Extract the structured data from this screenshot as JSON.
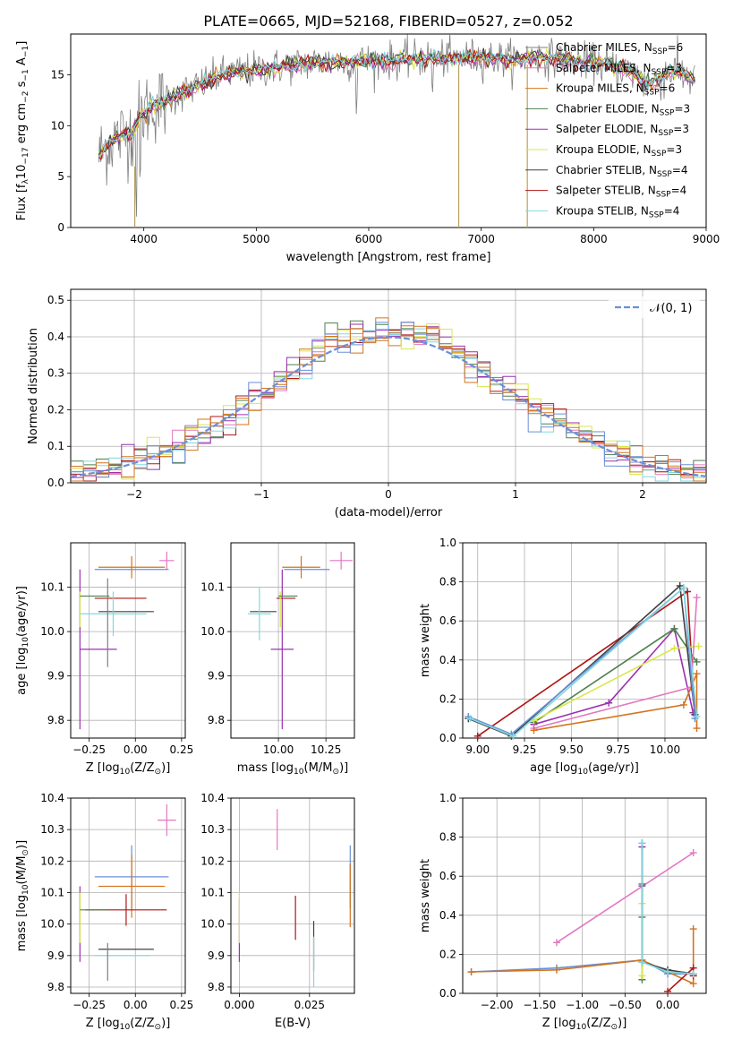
{
  "figure": {
    "title": "PLATE=0665, MJD=52168, FIBERID=0527, z=0.052"
  },
  "legend_colors": [
    "#7f7f7f",
    "#e377c2",
    "#d2741e",
    "#4f7f4f",
    "#9b30b0",
    "#d9e84a",
    "#404040",
    "#b01515",
    "#80d8e0"
  ],
  "chart_data": [
    {
      "id": "spectrum",
      "type": "line",
      "xlabel": "wavelength [Angstrom, rest frame]",
      "ylabel": "Flux [f_λ 10^-17 erg cm^-2 s^-1 A^-1]",
      "ylabel_parts": [
        "Flux [f",
        "λ",
        "10",
        "−17",
        " erg cm",
        "−2",
        " s",
        "−1",
        " A",
        "−1",
        "]"
      ],
      "xlim": [
        3350,
        9000
      ],
      "ylim": [
        0,
        19
      ],
      "xticks": [
        4000,
        5000,
        6000,
        7000,
        8000,
        9000
      ],
      "yticks": [
        0,
        5,
        10,
        15
      ],
      "grid": false,
      "legend": "upper right",
      "series": [
        {
          "name": "Chabrier MILES, N",
          "sub": "SSP",
          "suffix": "=6"
        },
        {
          "name": "Salpeter MILES, N",
          "sub": "SSP",
          "suffix": "=3"
        },
        {
          "name": "Kroupa MILES, N",
          "sub": "SSP",
          "suffix": "=6"
        },
        {
          "name": "Chabrier ELODIE, N",
          "sub": "SSP",
          "suffix": "=3"
        },
        {
          "name": "Salpeter ELODIE, N",
          "sub": "SSP",
          "suffix": "=3"
        },
        {
          "name": "Kroupa ELODIE, N",
          "sub": "SSP",
          "suffix": "=3"
        },
        {
          "name": "Chabrier STELIB, N",
          "sub": "SSP",
          "suffix": "=4"
        },
        {
          "name": "Salpeter STELIB, N",
          "sub": "SSP",
          "suffix": "=4"
        },
        {
          "name": "Kroupa STELIB, N",
          "sub": "SSP",
          "suffix": "=4"
        }
      ],
      "shape": [
        [
          3600,
          7
        ],
        [
          3700,
          8.5
        ],
        [
          3900,
          9.5
        ],
        [
          4000,
          11.5
        ],
        [
          4200,
          12.5
        ],
        [
          4400,
          13.5
        ],
        [
          4700,
          15
        ],
        [
          5000,
          15.5
        ],
        [
          5500,
          16.2
        ],
        [
          6000,
          16.3
        ],
        [
          6500,
          16.6
        ],
        [
          7000,
          16.7
        ],
        [
          7300,
          16.5
        ],
        [
          7500,
          16.8
        ],
        [
          8000,
          16.2
        ],
        [
          8300,
          15.5
        ],
        [
          8500,
          14
        ],
        [
          8700,
          15.5
        ],
        [
          8900,
          14.5
        ]
      ]
    },
    {
      "id": "residuals",
      "type": "histogram",
      "xlabel": "(data-model)/error",
      "ylabel": "Normed distribution",
      "xlim": [
        -2.5,
        2.5
      ],
      "ylim": [
        0,
        0.53
      ],
      "xticks": [
        -2,
        -1,
        0,
        1,
        2
      ],
      "yticks": [
        0.0,
        0.1,
        0.2,
        0.3,
        0.4,
        0.5
      ],
      "grid": true,
      "legend_label": "𝒩(0, 1)",
      "legend_color": "#6b8fd6",
      "legend": "upper right"
    },
    {
      "id": "age-vs-Z",
      "type": "scatter",
      "xlabel_parts": [
        "Z [log",
        "10",
        "(Z/Z",
        "⊙",
        ")]"
      ],
      "ylabel_parts": [
        "age  [log",
        "10",
        "(age/yr)]"
      ],
      "xlim": [
        -0.35,
        0.27
      ],
      "ylim": [
        9.76,
        10.2
      ],
      "xticks": [
        -0.25,
        0.0,
        0.25
      ],
      "yticks": [
        9.8,
        9.9,
        10.0,
        10.1
      ],
      "grid": true,
      "points": [
        {
          "c": "#e377c2",
          "x": 0.17,
          "y": 10.16,
          "xe": 0.04,
          "ye": 0.02
        },
        {
          "c": "#6b8fd6",
          "x": -0.02,
          "y": 10.14,
          "xe": 0.2,
          "ye": 0.0
        },
        {
          "c": "#d2741e",
          "x": -0.02,
          "y": 10.145,
          "xe": 0.18,
          "ye": 0.025
        },
        {
          "c": "#b01515",
          "x": -0.08,
          "y": 10.075,
          "xe": 0.14,
          "ye": 0.0
        },
        {
          "c": "#9b30b0",
          "x": -0.3,
          "y": 9.96,
          "xe": 0.0,
          "ye": 0.18
        },
        {
          "c": "#d9e84a",
          "x": -0.3,
          "y": 10.05,
          "xe": 0.0,
          "ye": 0.04
        },
        {
          "c": "#9b30b0",
          "x": -0.2,
          "y": 9.96,
          "xe": 0.1,
          "ye": 0.0
        },
        {
          "c": "#404040",
          "x": -0.05,
          "y": 10.045,
          "xe": 0.15,
          "ye": 0.0
        },
        {
          "c": "#80d8e0",
          "x": -0.12,
          "y": 10.04,
          "xe": 0.18,
          "ye": 0.05
        },
        {
          "c": "#4f7f4f",
          "x": -0.22,
          "y": 10.08,
          "xe": 0.08,
          "ye": 0.0
        },
        {
          "c": "#7f7f7f",
          "x": -0.15,
          "y": 10.02,
          "xe": 0.0,
          "ye": 0.1
        }
      ]
    },
    {
      "id": "age-vs-mass",
      "type": "scatter",
      "xlabel_parts": [
        "mass [log",
        "10",
        "(M/M",
        "⊙",
        ")]"
      ],
      "xlim": [
        9.75,
        10.4
      ],
      "ylim": [
        9.76,
        10.2
      ],
      "xticks": [
        10.0,
        10.25
      ],
      "yticks": [
        9.8,
        9.9,
        10.0,
        10.1
      ],
      "grid": true,
      "points": [
        {
          "c": "#e377c2",
          "x": 10.33,
          "y": 10.16,
          "xe": 0.06,
          "ye": 0.02
        },
        {
          "c": "#6b8fd6",
          "x": 10.15,
          "y": 10.14,
          "xe": 0.12,
          "ye": 0.0
        },
        {
          "c": "#d2741e",
          "x": 10.12,
          "y": 10.145,
          "xe": 0.1,
          "ye": 0.025
        },
        {
          "c": "#b01515",
          "x": 10.04,
          "y": 10.075,
          "xe": 0.05,
          "ye": 0.0
        },
        {
          "c": "#9b30b0",
          "x": 10.02,
          "y": 9.96,
          "xe": 0.06,
          "ye": 0.18
        },
        {
          "c": "#d9e84a",
          "x": 10.01,
          "y": 10.05,
          "xe": 0.0,
          "ye": 0.04
        },
        {
          "c": "#404040",
          "x": 9.92,
          "y": 10.045,
          "xe": 0.07,
          "ye": 0.0
        },
        {
          "c": "#80d8e0",
          "x": 9.9,
          "y": 10.04,
          "xe": 0.06,
          "ye": 0.06
        },
        {
          "c": "#4f7f4f",
          "x": 10.05,
          "y": 10.08,
          "xe": 0.05,
          "ye": 0.0
        }
      ]
    },
    {
      "id": "weight-vs-age",
      "type": "line",
      "xlabel_parts": [
        "age  [log",
        "10",
        "(age/yr)]"
      ],
      "ylabel": "mass weight",
      "xlim": [
        8.92,
        10.22
      ],
      "ylim": [
        0,
        1.0
      ],
      "xticks": [
        9.0,
        9.25,
        9.5,
        9.75,
        10.0
      ],
      "yticks": [
        0.0,
        0.2,
        0.4,
        0.6,
        0.8,
        1.0
      ],
      "grid": true,
      "series": [
        {
          "c": "#b01515",
          "x": [
            9.0,
            10.12,
            10.16
          ],
          "y": [
            0.01,
            0.75,
            0.12
          ]
        },
        {
          "c": "#9b30b0",
          "x": [
            9.3,
            9.7,
            10.05,
            10.15
          ],
          "y": [
            0.07,
            0.18,
            0.56,
            0.13
          ]
        },
        {
          "c": "#4f7f4f",
          "x": [
            9.3,
            10.05,
            10.17
          ],
          "y": [
            0.08,
            0.56,
            0.39
          ]
        },
        {
          "c": "#d9e84a",
          "x": [
            9.3,
            10.05,
            10.18
          ],
          "y": [
            0.09,
            0.46,
            0.47
          ]
        },
        {
          "c": "#e377c2",
          "x": [
            9.3,
            10.14,
            10.17
          ],
          "y": [
            0.05,
            0.26,
            0.72
          ]
        },
        {
          "c": "#d2741e",
          "x": [
            9.3,
            10.1,
            10.17,
            10.17
          ],
          "y": [
            0.04,
            0.17,
            0.33,
            0.05
          ]
        },
        {
          "c": "#404040",
          "x": [
            8.95,
            9.18,
            10.08,
            10.16
          ],
          "y": [
            0.1,
            0.01,
            0.78,
            0.12
          ]
        },
        {
          "c": "#6b8fd6",
          "x": [
            8.95,
            9.18,
            10.1,
            10.16
          ],
          "y": [
            0.11,
            0.02,
            0.77,
            0.1
          ]
        },
        {
          "c": "#80d8e0",
          "x": [
            8.96,
            9.19,
            10.1,
            10.17
          ],
          "y": [
            0.1,
            0.01,
            0.77,
            0.11
          ]
        }
      ]
    },
    {
      "id": "mass-vs-Z",
      "type": "scatter",
      "xlabel_parts": [
        "Z [log",
        "10",
        "(Z/Z",
        "⊙",
        ")]"
      ],
      "ylabel_parts": [
        "mass [log",
        "10",
        "(M/M",
        "⊙",
        ")]"
      ],
      "xlim": [
        -0.35,
        0.27
      ],
      "ylim": [
        9.78,
        10.4
      ],
      "xticks": [
        -0.25,
        0.0,
        0.25
      ],
      "yticks": [
        9.8,
        9.9,
        10.0,
        10.1,
        10.2,
        10.3,
        10.4
      ],
      "grid": true,
      "points": [
        {
          "c": "#e377c2",
          "x": 0.17,
          "y": 10.33,
          "xe": 0.05,
          "ye": 0.05
        },
        {
          "c": "#6b8fd6",
          "x": -0.02,
          "y": 10.15,
          "xe": 0.2,
          "ye": 0.1
        },
        {
          "c": "#d2741e",
          "x": -0.02,
          "y": 10.12,
          "xe": 0.18,
          "ye": 0.1
        },
        {
          "c": "#b01515",
          "x": -0.05,
          "y": 10.045,
          "xe": 0.22,
          "ye": 0.05
        },
        {
          "c": "#9b30b0",
          "x": -0.3,
          "y": 10.0,
          "xe": 0.0,
          "ye": 0.12
        },
        {
          "c": "#d9e84a",
          "x": -0.3,
          "y": 10.02,
          "xe": 0.0,
          "ye": 0.08
        },
        {
          "c": "#404040",
          "x": -0.05,
          "y": 9.92,
          "xe": 0.15,
          "ye": 0.0
        },
        {
          "c": "#80d8e0",
          "x": -0.07,
          "y": 9.9,
          "xe": 0.15,
          "ye": 0.0
        },
        {
          "c": "#4f7f4f",
          "x": -0.22,
          "y": 10.045,
          "xe": 0.08,
          "ye": 0.0
        },
        {
          "c": "#7f7f7f",
          "x": -0.15,
          "y": 9.88,
          "xe": 0.0,
          "ye": 0.06
        }
      ]
    },
    {
      "id": "mass-vs-ebv",
      "type": "scatter",
      "xlabel": "E(B-V)",
      "xlim": [
        -0.003,
        0.041
      ],
      "ylim": [
        9.78,
        10.4
      ],
      "xticks": [
        0.0,
        0.025
      ],
      "yticks": [
        9.8,
        9.9,
        10.0,
        10.1,
        10.2,
        10.3,
        10.4
      ],
      "grid": true,
      "points": [
        {
          "c": "#e377c2",
          "x": 0.0135,
          "y": 10.3,
          "xe": 0.0,
          "ye": 0.065
        },
        {
          "c": "#6b8fd6",
          "x": 0.0395,
          "y": 10.15,
          "xe": 0.0,
          "ye": 0.1
        },
        {
          "c": "#d2741e",
          "x": 0.0395,
          "y": 10.09,
          "xe": 0.0,
          "ye": 0.1
        },
        {
          "c": "#b01515",
          "x": 0.02,
          "y": 10.02,
          "xe": 0.0,
          "ye": 0.07
        },
        {
          "c": "#9b30b0",
          "x": 0.0,
          "y": 9.98,
          "xe": 0.0,
          "ye": 0.1
        },
        {
          "c": "#d9e84a",
          "x": 0.0,
          "y": 10.02,
          "xe": 0.0,
          "ye": 0.08
        },
        {
          "c": "#404040",
          "x": 0.0265,
          "y": 9.93,
          "xe": 0.0,
          "ye": 0.08
        },
        {
          "c": "#80d8e0",
          "x": 0.0265,
          "y": 9.88,
          "xe": 0.0,
          "ye": 0.08
        }
      ]
    },
    {
      "id": "weight-vs-Z",
      "type": "line",
      "xlabel_parts": [
        "Z [log",
        "10",
        "(Z/Z",
        "⊙",
        ")]"
      ],
      "ylabel": "mass weight",
      "xlim": [
        -2.4,
        0.45
      ],
      "ylim": [
        0,
        1.0
      ],
      "xticks": [
        -2.0,
        -1.5,
        -1.0,
        -0.5,
        0.0
      ],
      "yticks": [
        0.0,
        0.2,
        0.4,
        0.6,
        0.8,
        1.0
      ],
      "grid": true,
      "series": [
        {
          "c": "#6b8fd6",
          "x": [
            -2.3,
            -1.3,
            -0.3,
            0.0,
            0.3
          ],
          "y": [
            0.11,
            0.13,
            0.17,
            0.1,
            0.1
          ]
        },
        {
          "c": "#d2741e",
          "x": [
            -2.3,
            -1.3,
            -0.3,
            0.0,
            0.3,
            0.3
          ],
          "y": [
            0.11,
            0.12,
            0.17,
            0.11,
            0.05,
            0.33
          ]
        },
        {
          "c": "#e377c2",
          "x": [
            -1.3,
            0.3
          ],
          "y": [
            0.26,
            0.72
          ]
        },
        {
          "c": "#9b30b0",
          "x": [
            -0.3,
            -0.3
          ],
          "y": [
            0.75,
            0.55
          ]
        },
        {
          "c": "#4f7f4f",
          "x": [
            -0.3,
            -0.3,
            -0.3
          ],
          "y": [
            0.56,
            0.39,
            0.07
          ]
        },
        {
          "c": "#d9e84a",
          "x": [
            -0.3,
            -0.3
          ],
          "y": [
            0.46,
            0.09
          ]
        },
        {
          "c": "#b01515",
          "x": [
            0.0,
            0.3,
            0.3
          ],
          "y": [
            0.01,
            0.13,
            0.09
          ]
        },
        {
          "c": "#404040",
          "x": [
            -0.3,
            -0.3,
            0.0,
            0.3
          ],
          "y": [
            0.77,
            0.16,
            0.12,
            0.1
          ]
        },
        {
          "c": "#80d8e0",
          "x": [
            -0.3,
            -0.3,
            0.0,
            0.3
          ],
          "y": [
            0.77,
            0.16,
            0.11,
            0.1
          ]
        }
      ]
    }
  ]
}
